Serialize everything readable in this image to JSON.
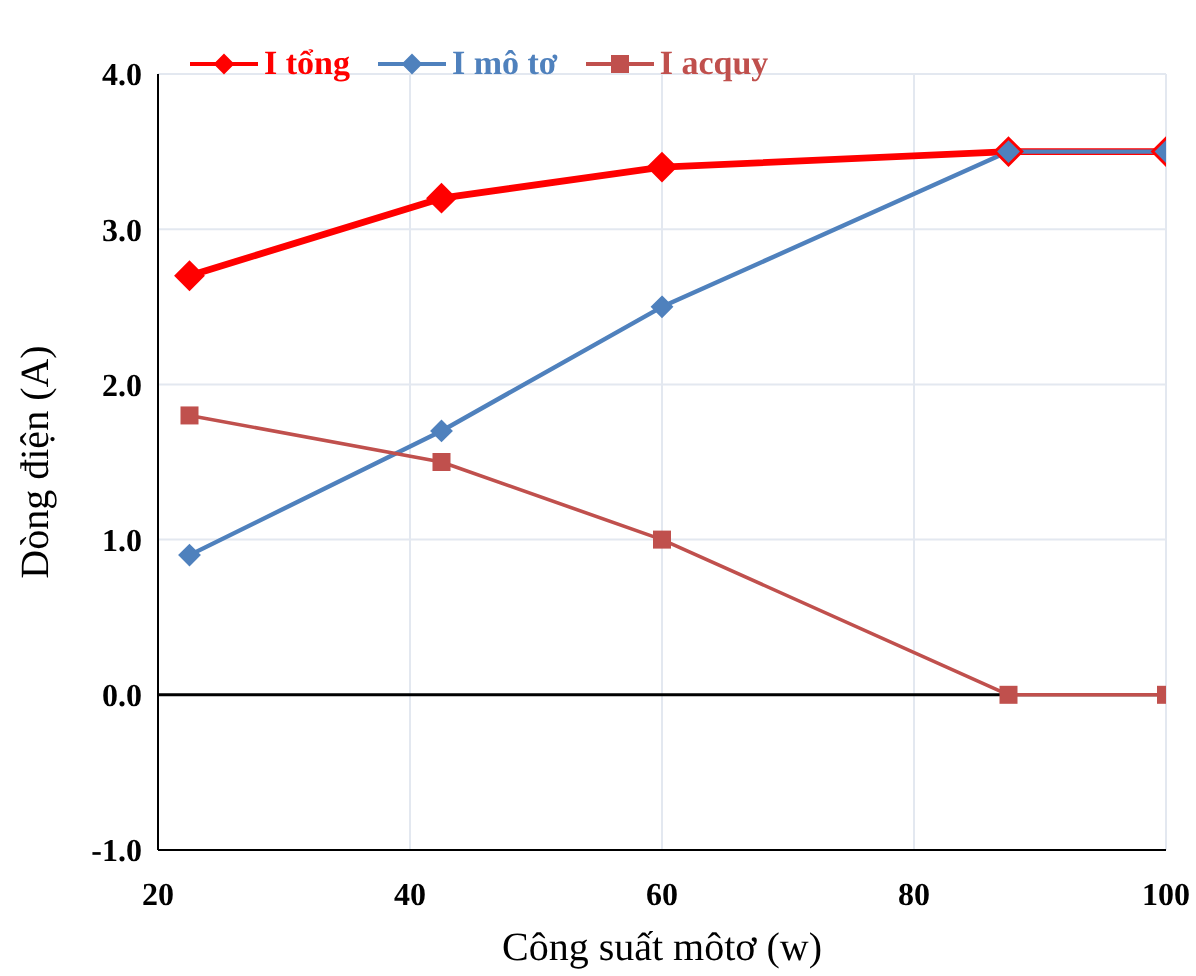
{
  "chart_data": {
    "type": "line",
    "xlabel": "Công suất môtơ (w)",
    "ylabel": "Dòng điện (A)",
    "x": [
      22.5,
      42.5,
      60,
      87.5,
      100
    ],
    "series": [
      {
        "name": "I tổng",
        "color": "#ff0000",
        "marker": "diamond",
        "values": [
          2.7,
          3.2,
          3.4,
          3.5,
          3.5
        ]
      },
      {
        "name": "I mô tơ",
        "color": "#4f81bd",
        "marker": "diamond",
        "values": [
          0.9,
          1.7,
          2.5,
          3.5,
          3.5
        ]
      },
      {
        "name": "I acquy",
        "color": "#c0504d",
        "marker": "square",
        "values": [
          1.8,
          1.5,
          1.0,
          0,
          0
        ]
      }
    ],
    "xlim": [
      20,
      100
    ],
    "xticks": [
      20,
      40,
      60,
      80,
      100
    ],
    "ylim": [
      -1,
      4
    ],
    "yticks": [
      {
        "value": -1,
        "label": "-1.0"
      },
      {
        "value": 0,
        "label": "0.0"
      },
      {
        "value": 1,
        "label": "1.0"
      },
      {
        "value": 2,
        "label": "2.0"
      },
      {
        "value": 3,
        "label": "3.0"
      },
      {
        "value": 4,
        "label": "4.0"
      }
    ],
    "ref_lines": [
      {
        "axis": "y",
        "value": 0,
        "color": "#000000"
      }
    ],
    "grid": true,
    "legend": "top left",
    "line_style": "solid"
  }
}
